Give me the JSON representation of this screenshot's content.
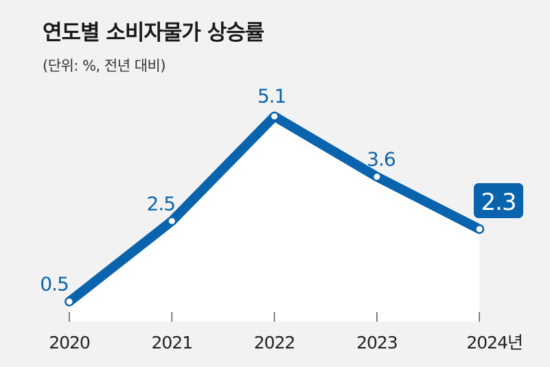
{
  "chart_data": {
    "type": "line",
    "title": "연도별 소비자물가 상승률",
    "subtitle": "(단위: %, 전년 대비)",
    "categories": [
      "2020",
      "2021",
      "2022",
      "2023",
      "2024년"
    ],
    "values": [
      0.5,
      2.5,
      5.1,
      3.6,
      2.3
    ],
    "data_labels": [
      "0.5",
      "2.5",
      "5.1",
      "3.6",
      "2.3"
    ],
    "highlighted_index": 4,
    "ylim": [
      0,
      5.5
    ],
    "grid": false,
    "colors": {
      "line": "#0a64ad",
      "area": "#ffffff",
      "background": "#f2f2f2",
      "text": "#231f20"
    }
  }
}
